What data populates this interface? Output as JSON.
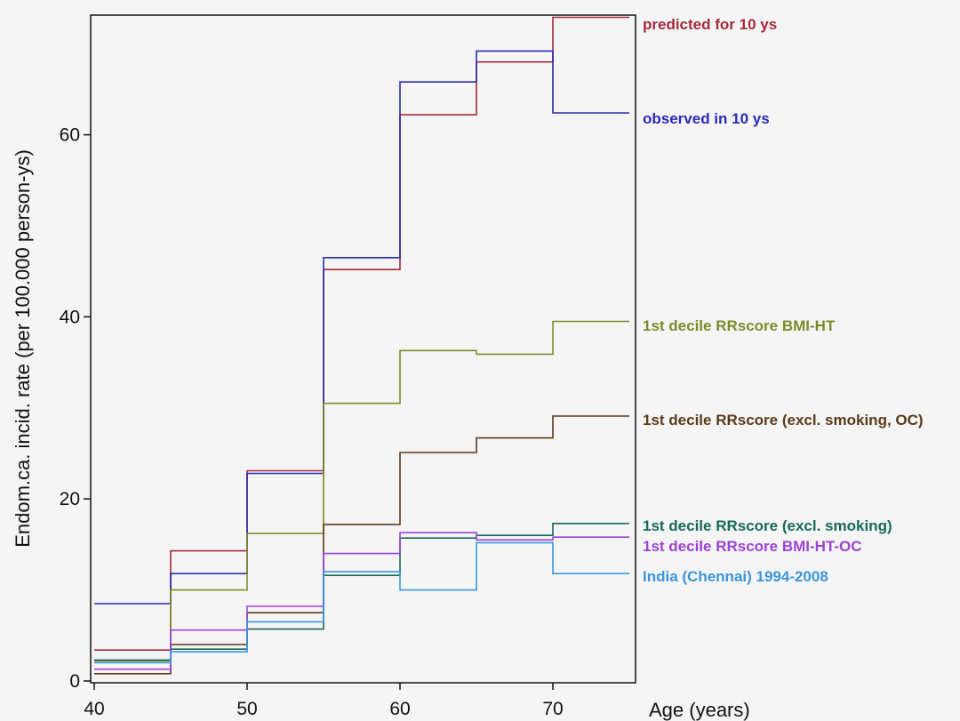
{
  "chart_data": {
    "type": "line",
    "step": true,
    "xlabel": "Age (years)",
    "ylabel": "Endom.ca. incid. rate (per 100.000 person-ys)",
    "xlim": [
      40,
      75
    ],
    "ylim": [
      0,
      74
    ],
    "xticks": [
      40,
      50,
      60,
      70
    ],
    "yticks": [
      0,
      20,
      40,
      60
    ],
    "grid": false,
    "legend": "direct labels at right of plot",
    "x_steps": [
      40,
      45,
      50,
      55,
      60,
      65,
      70,
      75
    ],
    "series": [
      {
        "name": "predicted for 10 ys",
        "color": "#a52a3a",
        "values": [
          3.4,
          14.3,
          23.1,
          45.2,
          62.2,
          68.0,
          72.9
        ]
      },
      {
        "name": "observed in 10 ys",
        "color": "#2929b8",
        "values": [
          8.5,
          11.8,
          22.8,
          46.5,
          65.8,
          69.2,
          62.4
        ]
      },
      {
        "name": "1st decile RRscore BMI-HT",
        "color": "#7a8c2a",
        "values": [
          2.2,
          10.0,
          16.2,
          30.5,
          36.3,
          35.9,
          39.5
        ]
      },
      {
        "name": "1st decile RRscore (excl. smoking, OC)",
        "color": "#5a3a1a",
        "values": [
          0.8,
          4.0,
          7.5,
          17.2,
          25.1,
          26.7,
          29.1
        ]
      },
      {
        "name": "1st decile RRscore (excl. smoking)",
        "color": "#17695a",
        "values": [
          2.3,
          3.5,
          5.7,
          11.6,
          15.7,
          16.0,
          17.3
        ]
      },
      {
        "name": "1st decile RRscore BMI-HT-OC",
        "color": "#9b43d6",
        "values": [
          1.3,
          5.6,
          8.2,
          14.0,
          16.3,
          15.5,
          15.8
        ]
      },
      {
        "name": "India (Chennai) 1994-2008",
        "color": "#3a96dc",
        "values": [
          2.0,
          3.2,
          6.5,
          12.0,
          10.0,
          15.2,
          11.8
        ]
      }
    ]
  }
}
